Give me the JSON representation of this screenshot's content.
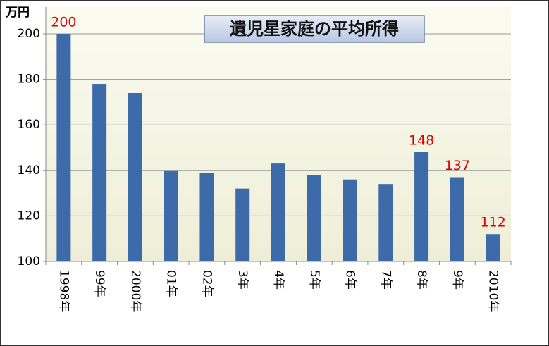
{
  "chart_data": {
    "type": "bar",
    "title": "遺児星家庭の平均所得",
    "y_unit": "万円",
    "categories": [
      "1998年",
      "99年",
      "2000年",
      "01年",
      "02年",
      "3年",
      "4年",
      "5年",
      "6年",
      "7年",
      "8年",
      "9年",
      "2010年"
    ],
    "values": [
      200,
      178,
      174,
      140,
      139,
      132,
      143,
      138,
      136,
      134,
      148,
      137,
      112
    ],
    "value_labels": [
      "200",
      null,
      null,
      null,
      null,
      null,
      null,
      null,
      null,
      null,
      "148",
      "137",
      "112"
    ],
    "color": "#3d6aa8",
    "label_color": "#e00000",
    "ylim": [
      100,
      200
    ],
    "yticks": [
      100,
      120,
      140,
      160,
      180,
      200
    ],
    "grid": true
  }
}
